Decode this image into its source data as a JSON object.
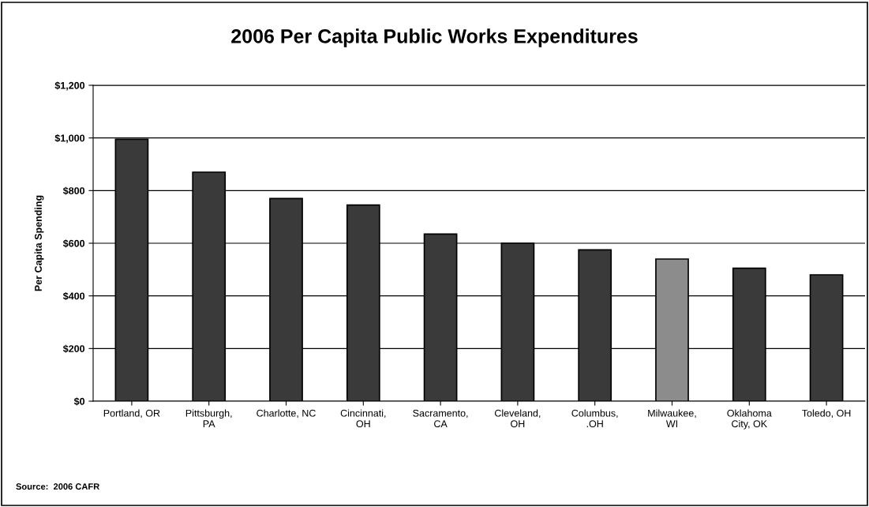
{
  "chart_data": {
    "type": "bar",
    "title": "2006 Per Capita Public Works Expenditures",
    "ylabel": "Per Capita Spending",
    "categories": [
      "Portland, OR",
      "Pittsburgh,\nPA",
      "Charlotte, NC",
      "Cincinnati,\nOH",
      "Sacramento,\nCA",
      "Cleveland,\nOH",
      "Columbus,\n.OH",
      "Milwaukee,\nWI",
      "Oklahoma\nCity, OK",
      "Toledo, OH"
    ],
    "values": [
      995,
      870,
      770,
      745,
      635,
      600,
      575,
      540,
      505,
      480
    ],
    "colors": [
      "#3a3a3a",
      "#3a3a3a",
      "#3a3a3a",
      "#3a3a3a",
      "#3a3a3a",
      "#3a3a3a",
      "#3a3a3a",
      "#8c8c8c",
      "#3a3a3a",
      "#3a3a3a"
    ],
    "ylim": [
      0,
      1200
    ],
    "yticks": [
      {
        "value": 0,
        "label": "$0"
      },
      {
        "value": 200,
        "label": "$200"
      },
      {
        "value": 400,
        "label": "$400"
      },
      {
        "value": 600,
        "label": "$600"
      },
      {
        "value": 800,
        "label": "$800"
      },
      {
        "value": 1000,
        "label": "$1,000"
      },
      {
        "value": 1200,
        "label": "$1,200"
      }
    ],
    "grid": "y",
    "annotations": [
      "Source:  2006 CAFR"
    ]
  }
}
